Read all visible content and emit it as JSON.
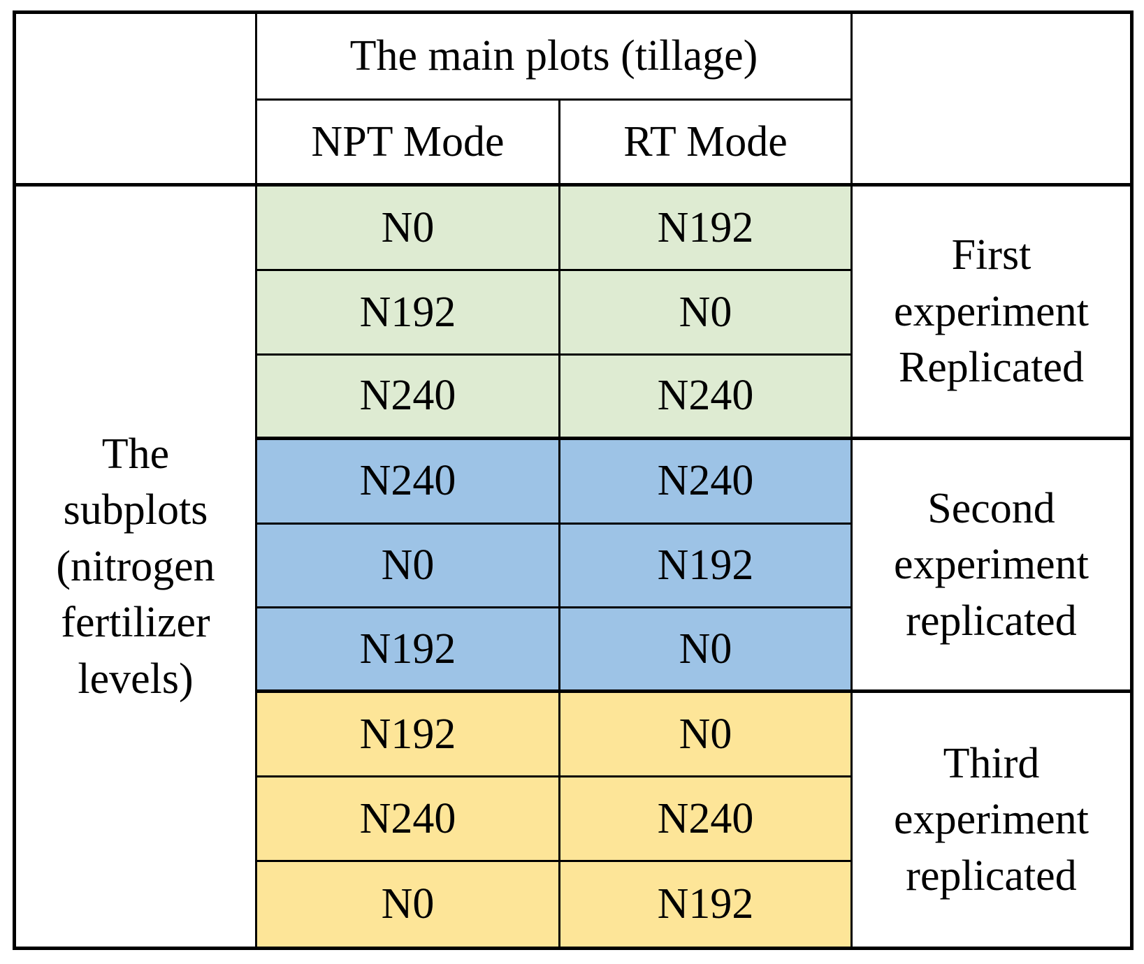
{
  "page": {
    "background": "#ffffff",
    "border_color": "#000000"
  },
  "table": {
    "top_header": "The main plots (tillage)",
    "col_headers": {
      "npt": "NPT Mode",
      "rt": "RT Mode"
    },
    "left_label": "The subplots (nitrogen fertilizer levels)",
    "groups": [
      {
        "label": "First experiment Replicated",
        "color": "#deebd2",
        "rows": [
          [
            "N0",
            "N192"
          ],
          [
            "N192",
            "N0"
          ],
          [
            "N240",
            "N240"
          ]
        ]
      },
      {
        "label": "Second experiment replicated",
        "color": "#9dc3e6",
        "rows": [
          [
            "N240",
            "N240"
          ],
          [
            "N0",
            "N192"
          ],
          [
            "N192",
            "N0"
          ]
        ]
      },
      {
        "label": "Third experiment replicated",
        "color": "#fde598",
        "rows": [
          [
            "N192",
            "N0"
          ],
          [
            "N240",
            "N240"
          ],
          [
            "N0",
            "N192"
          ]
        ]
      }
    ]
  }
}
